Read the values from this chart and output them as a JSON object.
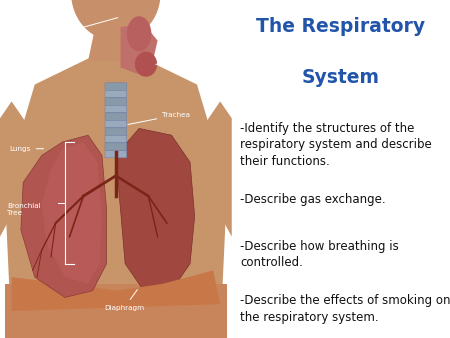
{
  "title_line1": "The Respiratory",
  "title_line2": "System",
  "title_color": "#2255AA",
  "title_fontsize": 13.5,
  "bullet_points": [
    "-Identify the structures of the\nrespiratory system and describe\ntheir functions.",
    "-Describe gas exchange.",
    "-Describe how breathing is\ncontrolled.",
    "-Describe the effects of smoking on\nthe respiratory system."
  ],
  "bullet_fontsize": 8.5,
  "bullet_color": "#111111",
  "background_color": "#ffffff",
  "image_bg_color": "#000000"
}
